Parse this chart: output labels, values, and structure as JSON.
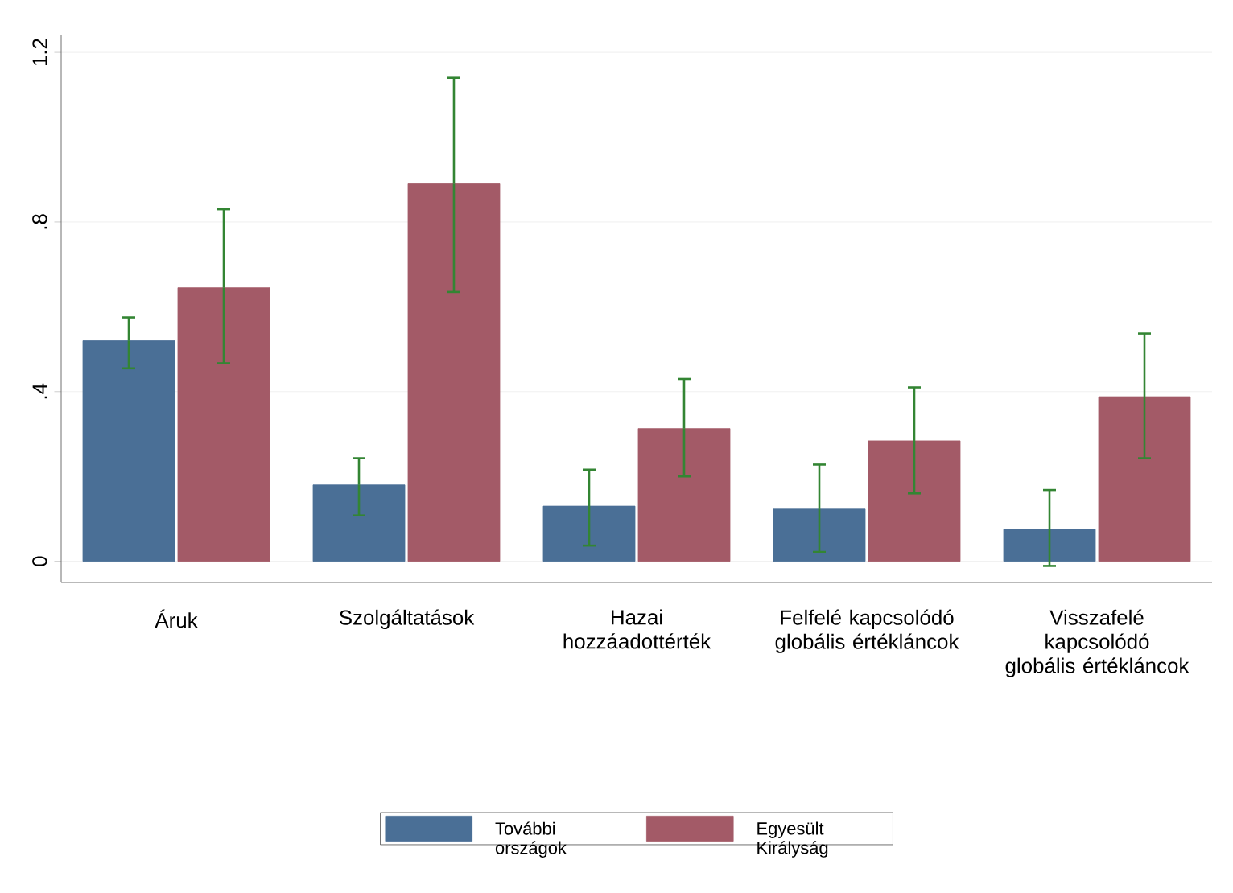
{
  "chart_data": {
    "type": "bar",
    "categories": [
      "Áruk",
      "Szolgáltatások",
      "Hazai hozzáadottérték",
      "Felfelé kapcsolódó globális értékláncok",
      "Visszafelé kapcsolódó globális értékláncok"
    ],
    "series": [
      {
        "name": "További országok",
        "color": "#4a6f96",
        "values": [
          0.52,
          0.18,
          0.13,
          0.123,
          0.075
        ],
        "errors": [
          [
            0.455,
            0.575
          ],
          [
            0.108,
            0.243
          ],
          [
            0.037,
            0.216
          ],
          [
            0.022,
            0.228
          ],
          [
            -0.011,
            0.168
          ]
        ]
      },
      {
        "name": "Egyesült Királyság",
        "color": "#a35a67",
        "values": [
          0.645,
          0.89,
          0.313,
          0.284,
          0.388
        ],
        "errors": [
          [
            0.467,
            0.83
          ],
          [
            0.635,
            1.14
          ],
          [
            0.2,
            0.43
          ],
          [
            0.16,
            0.41
          ],
          [
            0.243,
            0.537
          ]
        ]
      }
    ],
    "ylim": [
      -0.05,
      1.24
    ],
    "yticks": [
      {
        "value": 0,
        "label": "0"
      },
      {
        "value": 0.4,
        "label": ".4"
      },
      {
        "value": 0.8,
        "label": ".8"
      },
      {
        "value": 1.2,
        "label": "1.2"
      }
    ],
    "grid": "y",
    "legend": "bottom"
  }
}
